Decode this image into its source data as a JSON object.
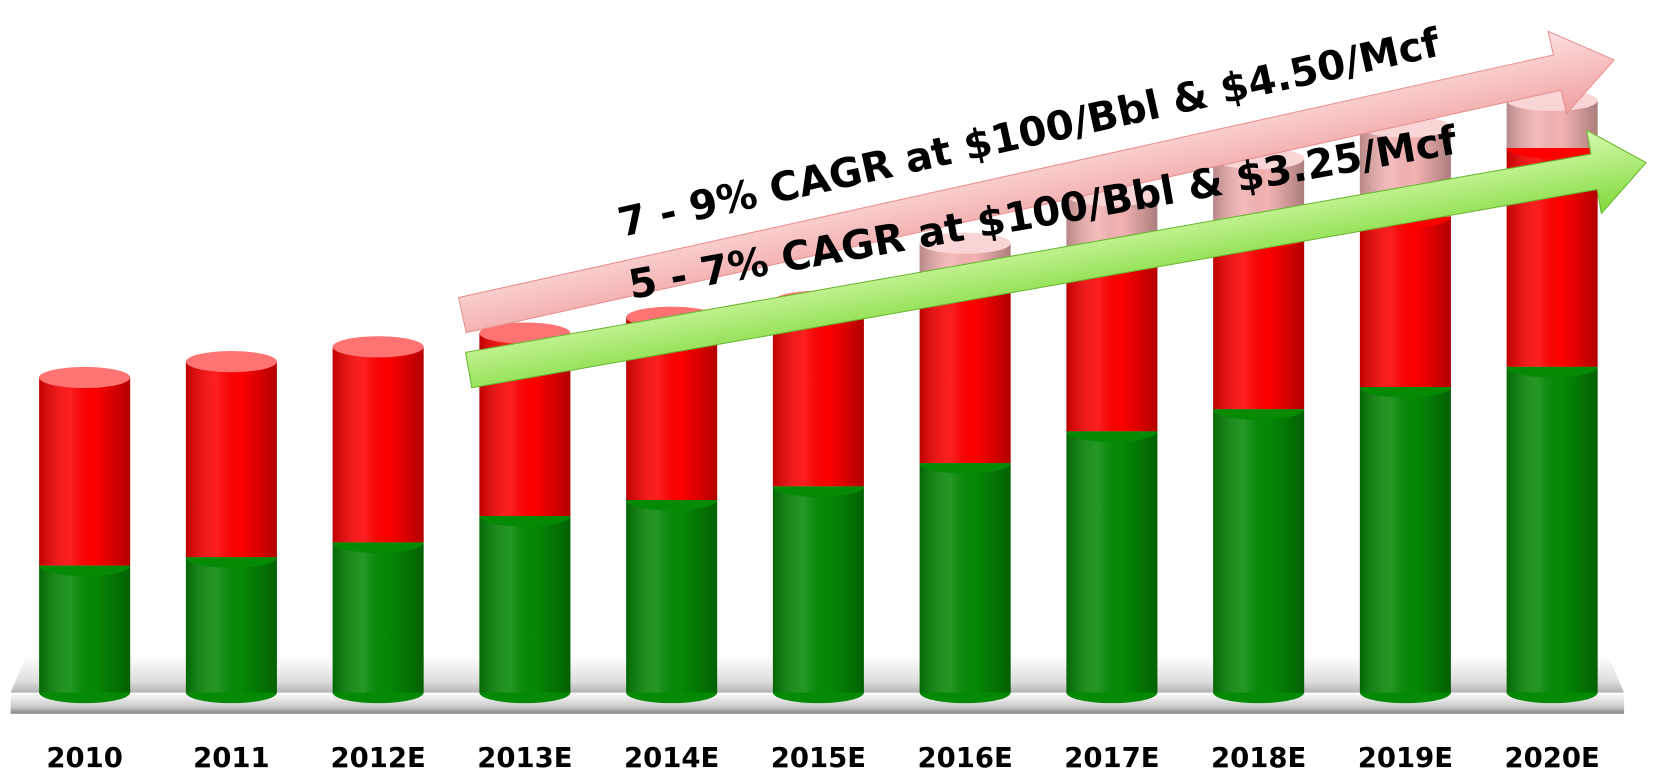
{
  "chart_data": {
    "type": "stacked_bar",
    "categories": [
      "2010",
      "2011",
      "2012E",
      "2013E",
      "2014E",
      "2015E",
      "2016E",
      "2017E",
      "2018E",
      "2019E",
      "2020E"
    ],
    "series": [
      {
        "color": "#058a05",
        "values": [
          120,
          128,
          142,
          167,
          182,
          195,
          217,
          247,
          268,
          289,
          308
        ]
      },
      {
        "color": "#ff0000",
        "values": [
          178,
          185,
          185,
          173,
          173,
          175,
          173,
          163,
          162,
          161,
          207
        ]
      },
      {
        "color": "#f4b3b3",
        "values": [
          null,
          null,
          null,
          null,
          null,
          null,
          35,
          60,
          75,
          85,
          45
        ]
      }
    ],
    "ylim": [
      0,
      655
    ],
    "annotations": [
      "7 - 9% CAGR at $100/Bbl & $4.50/Mcf",
      "5 - 7% CAGR at $100/Bbl & $3.25/Mcf"
    ]
  }
}
